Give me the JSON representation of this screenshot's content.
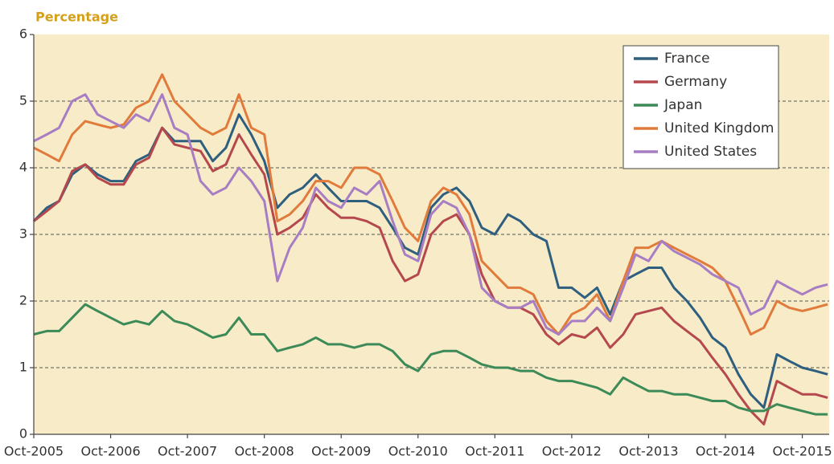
{
  "chart_data": {
    "type": "line",
    "title": "Percentage",
    "x": [
      2005.75,
      2005.92,
      2006.08,
      2006.25,
      2006.42,
      2006.58,
      2006.75,
      2006.92,
      2007.08,
      2007.25,
      2007.42,
      2007.58,
      2007.75,
      2007.92,
      2008.08,
      2008.25,
      2008.42,
      2008.58,
      2008.75,
      2008.92,
      2009.08,
      2009.25,
      2009.42,
      2009.58,
      2009.75,
      2009.92,
      2010.08,
      2010.25,
      2010.42,
      2010.58,
      2010.75,
      2010.92,
      2011.08,
      2011.25,
      2011.42,
      2011.58,
      2011.75,
      2011.92,
      2012.08,
      2012.25,
      2012.42,
      2012.58,
      2012.75,
      2012.92,
      2013.08,
      2013.25,
      2013.42,
      2013.58,
      2013.75,
      2013.92,
      2014.08,
      2014.25,
      2014.42,
      2014.58,
      2014.75,
      2014.92,
      2015.08,
      2015.25,
      2015.42,
      2015.58,
      2015.75,
      2015.92,
      2016.08
    ],
    "series": [
      {
        "name": "France",
        "color": "#2e5f7f",
        "values": [
          3.2,
          3.4,
          3.5,
          3.9,
          4.05,
          3.9,
          3.8,
          3.8,
          4.1,
          4.2,
          4.6,
          4.4,
          4.4,
          4.4,
          4.1,
          4.3,
          4.8,
          4.5,
          4.1,
          3.4,
          3.6,
          3.7,
          3.9,
          3.7,
          3.5,
          3.5,
          3.5,
          3.4,
          3.1,
          2.8,
          2.7,
          3.4,
          3.6,
          3.7,
          3.5,
          3.1,
          3.0,
          3.3,
          3.2,
          3.0,
          2.9,
          2.2,
          2.2,
          2.05,
          2.2,
          1.8,
          2.3,
          2.4,
          2.5,
          2.5,
          2.2,
          2.0,
          1.75,
          1.45,
          1.3,
          0.9,
          0.6,
          0.4,
          1.2,
          1.1,
          1.0,
          0.95,
          0.9
        ]
      },
      {
        "name": "Germany",
        "color": "#b5484d",
        "values": [
          3.2,
          3.35,
          3.5,
          3.95,
          4.05,
          3.85,
          3.75,
          3.75,
          4.05,
          4.15,
          4.6,
          4.35,
          4.3,
          4.25,
          3.95,
          4.05,
          4.5,
          4.2,
          3.9,
          3.0,
          3.1,
          3.25,
          3.6,
          3.4,
          3.25,
          3.25,
          3.2,
          3.1,
          2.6,
          2.3,
          2.4,
          3.0,
          3.2,
          3.3,
          3.0,
          2.4,
          2.0,
          1.9,
          1.9,
          1.8,
          1.5,
          1.35,
          1.5,
          1.45,
          1.6,
          1.3,
          1.5,
          1.8,
          1.85,
          1.9,
          1.7,
          1.55,
          1.4,
          1.15,
          0.9,
          0.6,
          0.35,
          0.15,
          0.8,
          0.7,
          0.6,
          0.6,
          0.55
        ]
      },
      {
        "name": "Japan",
        "color": "#3b8a57",
        "values": [
          1.5,
          1.55,
          1.55,
          1.75,
          1.95,
          1.85,
          1.75,
          1.65,
          1.7,
          1.65,
          1.85,
          1.7,
          1.65,
          1.55,
          1.45,
          1.5,
          1.75,
          1.5,
          1.5,
          1.25,
          1.3,
          1.35,
          1.45,
          1.35,
          1.35,
          1.3,
          1.35,
          1.35,
          1.25,
          1.05,
          0.95,
          1.2,
          1.25,
          1.25,
          1.15,
          1.05,
          1.0,
          1.0,
          0.95,
          0.95,
          0.85,
          0.8,
          0.8,
          0.75,
          0.7,
          0.6,
          0.85,
          0.75,
          0.65,
          0.65,
          0.6,
          0.6,
          0.55,
          0.5,
          0.5,
          0.4,
          0.35,
          0.35,
          0.45,
          0.4,
          0.35,
          0.3,
          0.3
        ]
      },
      {
        "name": "United Kingdom",
        "color": "#e07b3c",
        "values": [
          4.3,
          4.2,
          4.1,
          4.5,
          4.7,
          4.65,
          4.6,
          4.65,
          4.9,
          5.0,
          5.4,
          5.0,
          4.8,
          4.6,
          4.5,
          4.6,
          5.1,
          4.6,
          4.5,
          3.2,
          3.3,
          3.5,
          3.8,
          3.8,
          3.7,
          4.0,
          4.0,
          3.9,
          3.5,
          3.1,
          2.9,
          3.5,
          3.7,
          3.6,
          3.3,
          2.6,
          2.4,
          2.2,
          2.2,
          2.1,
          1.7,
          1.5,
          1.8,
          1.9,
          2.1,
          1.7,
          2.3,
          2.8,
          2.8,
          2.9,
          2.8,
          2.7,
          2.6,
          2.5,
          2.3,
          1.9,
          1.5,
          1.6,
          2.0,
          1.9,
          1.85,
          1.9,
          1.95
        ]
      },
      {
        "name": "United States",
        "color": "#a77dc4",
        "values": [
          4.4,
          4.5,
          4.6,
          5.0,
          5.1,
          4.8,
          4.7,
          4.6,
          4.8,
          4.7,
          5.1,
          4.6,
          4.5,
          3.8,
          3.6,
          3.7,
          4.0,
          3.8,
          3.5,
          2.3,
          2.8,
          3.1,
          3.7,
          3.5,
          3.4,
          3.7,
          3.6,
          3.8,
          3.2,
          2.7,
          2.6,
          3.3,
          3.5,
          3.4,
          3.0,
          2.2,
          2.0,
          1.9,
          1.9,
          2.0,
          1.6,
          1.5,
          1.7,
          1.7,
          1.9,
          1.7,
          2.2,
          2.7,
          2.6,
          2.9,
          2.75,
          2.65,
          2.55,
          2.4,
          2.3,
          2.2,
          1.8,
          1.9,
          2.3,
          2.2,
          2.1,
          2.2,
          2.25
        ]
      }
    ],
    "xlim": [
      2005.75,
      2016.1
    ],
    "xticks": [
      {
        "value": 2005.75,
        "label": "Oct-2005"
      },
      {
        "value": 2006.75,
        "label": "Oct-2006"
      },
      {
        "value": 2007.75,
        "label": "Oct-2007"
      },
      {
        "value": 2008.75,
        "label": "Oct-2008"
      },
      {
        "value": 2009.75,
        "label": "Oct-2009"
      },
      {
        "value": 2010.75,
        "label": "Oct-2010"
      },
      {
        "value": 2011.75,
        "label": "Oct-2011"
      },
      {
        "value": 2012.75,
        "label": "Oct-2012"
      },
      {
        "value": 2013.75,
        "label": "Oct-2013"
      },
      {
        "value": 2014.75,
        "label": "Oct-2014"
      },
      {
        "value": 2015.75,
        "label": "Oct-2015"
      }
    ],
    "ylim": [
      0,
      6
    ],
    "yticks": [
      0,
      1,
      2,
      3,
      4,
      5,
      6
    ],
    "grid": true,
    "legend": "upper right",
    "background": "#f8ebc8"
  }
}
